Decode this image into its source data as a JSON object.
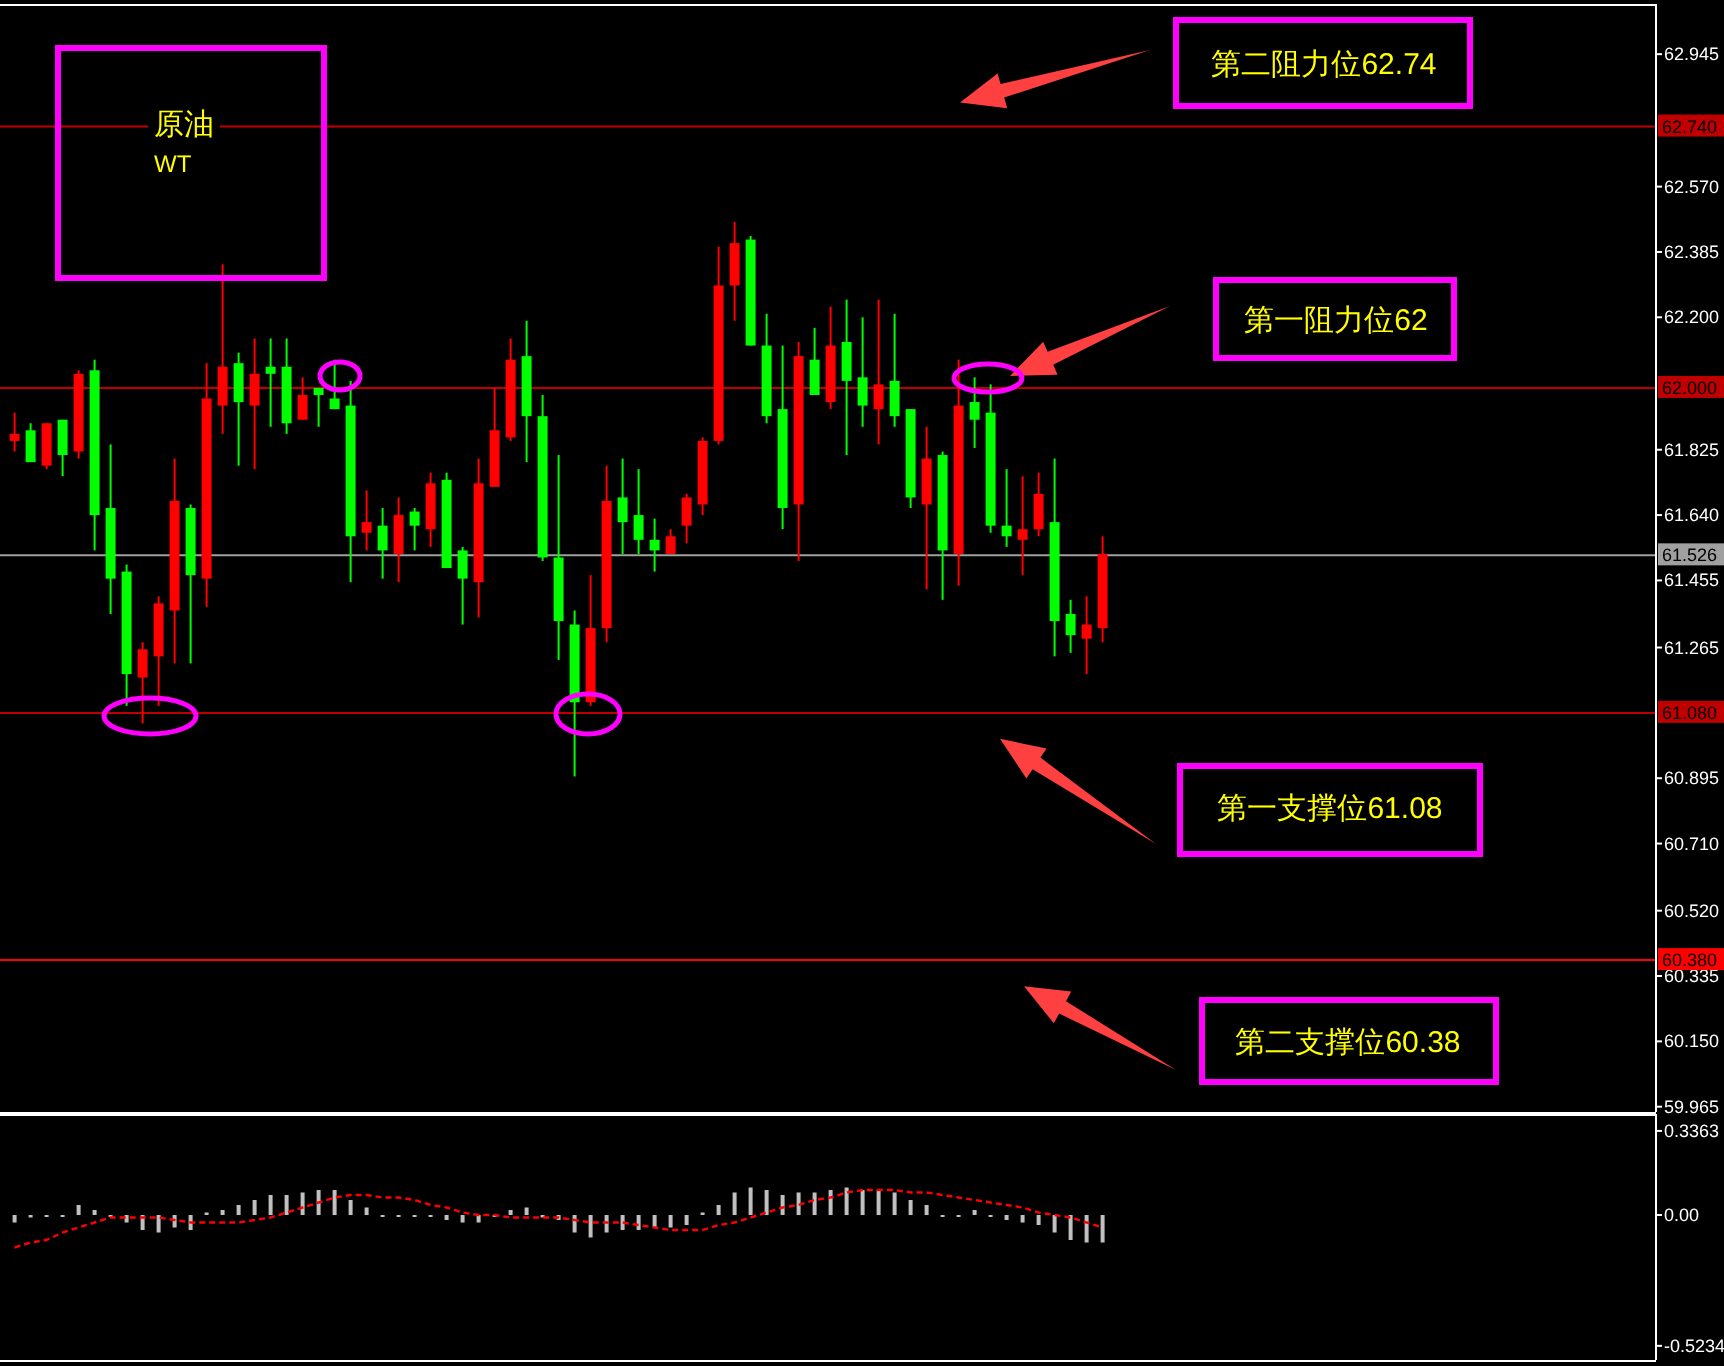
{
  "chart_data": [
    {
      "type": "candlestick",
      "title": "原油",
      "subtitle": "WT",
      "tick_labels": "y",
      "categories": [
        null,
        null,
        null,
        null,
        null,
        null,
        null,
        null,
        null,
        null,
        null,
        null,
        null,
        null,
        null,
        null,
        null,
        null,
        null,
        null,
        null,
        null,
        null,
        null,
        null,
        null,
        null,
        null,
        null,
        null,
        null,
        null,
        null,
        null,
        null,
        null,
        null,
        null,
        null,
        null,
        null,
        null,
        null,
        null,
        null,
        null,
        null,
        null,
        null,
        null,
        null,
        null,
        null,
        null,
        null,
        null,
        null,
        null,
        null,
        null,
        null,
        null,
        null,
        null,
        null,
        null,
        null,
        null,
        null,
        null,
        null,
        null,
        null,
        null,
        null,
        null,
        null,
        null,
        null,
        null,
        null,
        null,
        null,
        null,
        null,
        null,
        null,
        null,
        null,
        null,
        null,
        null,
        null,
        null,
        null,
        null,
        null,
        null,
        null,
        null,
        null,
        null,
        null
      ],
      "ohlc": [
        [
          61.85,
          61.93,
          61.82,
          61.87
        ],
        [
          61.88,
          61.9,
          61.79,
          61.79
        ],
        [
          61.78,
          61.9,
          61.77,
          61.9
        ],
        [
          61.91,
          61.91,
          61.75,
          61.81
        ],
        [
          61.82,
          62.05,
          61.8,
          62.04
        ],
        [
          62.05,
          62.08,
          61.54,
          61.64
        ],
        [
          61.66,
          61.84,
          61.36,
          61.46
        ],
        [
          61.48,
          61.5,
          61.1,
          61.19
        ],
        [
          61.18,
          61.28,
          61.05,
          61.26
        ],
        [
          61.24,
          61.41,
          61.1,
          61.39
        ],
        [
          61.37,
          61.8,
          61.22,
          61.68
        ],
        [
          61.66,
          61.67,
          61.22,
          61.47
        ],
        [
          61.46,
          62.07,
          61.38,
          61.97
        ],
        [
          61.95,
          62.35,
          61.87,
          62.06
        ],
        [
          62.07,
          62.1,
          61.78,
          61.96
        ],
        [
          61.95,
          62.14,
          61.77,
          62.04
        ],
        [
          62.06,
          62.14,
          61.89,
          62.04
        ],
        [
          62.06,
          62.14,
          61.87,
          61.9
        ],
        [
          61.91,
          62.03,
          61.91,
          61.98
        ],
        [
          62.0,
          62.0,
          61.89,
          61.98
        ],
        [
          61.97,
          62.08,
          61.94,
          61.94
        ],
        [
          61.95,
          62.02,
          61.45,
          61.58
        ],
        [
          61.59,
          61.71,
          61.54,
          61.62
        ],
        [
          61.61,
          61.66,
          61.46,
          61.54
        ],
        [
          61.53,
          61.69,
          61.45,
          61.64
        ],
        [
          61.65,
          61.66,
          61.54,
          61.61
        ],
        [
          61.6,
          61.76,
          61.55,
          61.73
        ],
        [
          61.74,
          61.76,
          61.49,
          61.49
        ],
        [
          61.54,
          61.55,
          61.33,
          61.46
        ],
        [
          61.45,
          61.8,
          61.35,
          61.73
        ],
        [
          61.72,
          62.0,
          61.72,
          61.88
        ],
        [
          61.86,
          62.14,
          61.85,
          62.08
        ],
        [
          62.09,
          62.19,
          61.79,
          61.92
        ],
        [
          61.92,
          61.98,
          61.51,
          61.52
        ],
        [
          61.52,
          61.81,
          61.23,
          61.34
        ],
        [
          61.33,
          61.37,
          60.9,
          61.11
        ],
        [
          61.11,
          61.47,
          61.1,
          61.32
        ],
        [
          61.32,
          61.78,
          61.28,
          61.68
        ],
        [
          61.69,
          61.8,
          61.53,
          61.62
        ],
        [
          61.64,
          61.77,
          61.53,
          61.57
        ],
        [
          61.57,
          61.63,
          61.48,
          61.54
        ],
        [
          61.53,
          61.6,
          61.53,
          61.58
        ],
        [
          61.61,
          61.7,
          61.56,
          61.69
        ],
        [
          61.67,
          61.86,
          61.64,
          61.85
        ],
        [
          61.85,
          62.4,
          61.84,
          62.29
        ],
        [
          62.29,
          62.47,
          62.19,
          62.41
        ],
        [
          62.42,
          62.43,
          62.12,
          62.12
        ],
        [
          62.12,
          62.21,
          61.9,
          61.92
        ],
        [
          61.94,
          62.12,
          61.6,
          61.66
        ],
        [
          61.67,
          62.13,
          61.51,
          62.09
        ],
        [
          62.08,
          62.17,
          61.98,
          61.98
        ],
        [
          61.96,
          62.23,
          61.94,
          62.12
        ],
        [
          62.13,
          62.25,
          61.81,
          62.02
        ],
        [
          62.03,
          62.2,
          61.89,
          61.95
        ],
        [
          61.94,
          62.25,
          61.84,
          62.01
        ],
        [
          62.02,
          62.21,
          61.89,
          61.92
        ],
        [
          61.94,
          61.94,
          61.66,
          61.69
        ],
        [
          61.67,
          61.89,
          61.43,
          61.8
        ],
        [
          61.81,
          61.82,
          61.4,
          61.54
        ],
        [
          61.53,
          62.08,
          61.44,
          61.95
        ],
        [
          61.96,
          62.03,
          61.83,
          61.91
        ],
        [
          61.93,
          62.01,
          61.59,
          61.61
        ],
        [
          61.61,
          61.77,
          61.55,
          61.58
        ],
        [
          61.57,
          61.75,
          61.47,
          61.6
        ],
        [
          61.6,
          61.76,
          61.58,
          61.7
        ],
        [
          61.62,
          61.8,
          61.24,
          61.34
        ],
        [
          61.36,
          61.4,
          61.25,
          61.3
        ],
        [
          61.29,
          61.41,
          61.19,
          61.33
        ],
        [
          61.32,
          61.58,
          61.28,
          61.53
        ],
        null,
        null,
        null,
        null,
        null,
        null,
        null,
        null,
        null,
        null,
        null,
        null,
        null,
        null,
        null,
        null,
        null,
        null,
        null,
        null,
        null,
        null,
        null,
        null,
        null,
        null,
        null,
        null,
        null,
        null,
        null,
        null,
        null,
        null
      ],
      "colors": [
        "#ff0000",
        "#00ff00",
        "#ff0000",
        "#00ff00",
        "#ff0000",
        "#00ff00",
        "#00ff00",
        "#00ff00",
        "#ff0000",
        "#ff0000",
        "#ff0000",
        "#00ff00",
        "#ff0000",
        "#ff0000",
        "#00ff00",
        "#ff0000",
        "#00ff00",
        "#00ff00",
        "#ff0000",
        "#00ff00",
        "#00ff00",
        "#00ff00",
        "#ff0000",
        "#00ff00",
        "#ff0000",
        "#00ff00",
        "#ff0000",
        "#00ff00",
        "#00ff00",
        "#ff0000",
        "#ff0000",
        "#ff0000",
        "#00ff00",
        "#00ff00",
        "#00ff00",
        "#00ff00",
        "#ff0000",
        "#ff0000",
        "#00ff00",
        "#00ff00",
        "#00ff00",
        "#ff0000",
        "#ff0000",
        "#ff0000",
        "#ff0000",
        "#ff0000",
        "#00ff00",
        "#00ff00",
        "#00ff00",
        "#ff0000",
        "#00ff00",
        "#ff0000",
        "#00ff00",
        "#00ff00",
        "#ff0000",
        "#00ff00",
        "#00ff00",
        "#ff0000",
        "#00ff00",
        "#ff0000",
        "#00ff00",
        "#00ff00",
        "#00ff00",
        "#ff0000",
        "#ff0000",
        "#00ff00",
        "#00ff00",
        "#ff0000",
        "#ff0000",
        null,
        null,
        null,
        null,
        null,
        null,
        null,
        null,
        null,
        null,
        null,
        null,
        null,
        null,
        null,
        null,
        null,
        null,
        null,
        null,
        null,
        null,
        null,
        null,
        null,
        null,
        null,
        null,
        null,
        null,
        null,
        null,
        null,
        null
      ],
      "ylim": [
        59.95,
        63.07
      ],
      "yticks": [
        62.945,
        {
          "value": 62.57,
          "label": "62.570"
        },
        62.385,
        {
          "value": 62.2,
          "label": "62.200"
        },
        61.825,
        {
          "value": 61.64,
          "label": "61.640"
        },
        61.455,
        61.265,
        60.895,
        {
          "value": 60.71,
          "label": "60.710"
        },
        {
          "value": 60.52,
          "label": "60.520"
        },
        60.335,
        {
          "value": 60.15,
          "label": "60.150"
        },
        59.965
      ],
      "ref_lines": [
        {
          "axis": "y",
          "value": 62.74,
          "label": "62.740",
          "color": "#c00000"
        },
        {
          "axis": "y",
          "value": 62.0,
          "label": "62.000",
          "color": "#c00000"
        },
        {
          "axis": "y",
          "value": 61.526,
          "label": "61.526",
          "color": "#a0a0a0"
        },
        {
          "axis": "y",
          "value": 61.08,
          "label": "61.080",
          "color": "#c00000"
        },
        {
          "axis": "y",
          "value": 60.38,
          "label": "60.380",
          "color": "#ff0000"
        }
      ],
      "annotations": [
        {
          "text": "第二阻力位62.74",
          "y": 62.74
        },
        {
          "text": "第一阻力位62",
          "y": 62.0
        },
        {
          "text": "第一支撑位61.08",
          "y": 61.08
        },
        {
          "text": "第二支撑位60.38",
          "y": 60.38
        }
      ]
    },
    {
      "type": "bar",
      "tick_labels": "y",
      "categories": [
        null,
        null,
        null,
        null,
        null,
        null,
        null,
        null,
        null,
        null,
        null,
        null,
        null,
        null,
        null,
        null,
        null,
        null,
        null,
        null,
        null,
        null,
        null,
        null,
        null,
        null,
        null,
        null,
        null,
        null,
        null,
        null,
        null,
        null,
        null,
        null,
        null,
        null,
        null,
        null,
        null,
        null,
        null,
        null,
        null,
        null,
        null,
        null,
        null,
        null,
        null,
        null,
        null,
        null,
        null,
        null,
        null,
        null,
        null,
        null,
        null,
        null,
        null,
        null,
        null,
        null,
        null,
        null,
        null,
        null,
        null,
        null,
        null,
        null,
        null,
        null,
        null,
        null,
        null,
        null,
        null,
        null,
        null,
        null,
        null,
        null,
        null,
        null,
        null,
        null,
        null,
        null,
        null,
        null,
        null,
        null,
        null,
        null,
        null,
        null,
        null,
        null,
        null
      ],
      "series": [
        {
          "type": "bar",
          "color": "#c0c0c0",
          "values": [
            -0.03,
            -0.01,
            0,
            0,
            0.04,
            0.02,
            0,
            -0.03,
            -0.06,
            -0.07,
            -0.05,
            -0.06,
            0.01,
            0.02,
            0.04,
            0.06,
            0.08,
            0.08,
            0.09,
            0.1,
            0.1,
            0.06,
            0.03,
            0,
            0,
            0,
            0,
            -0.02,
            -0.03,
            -0.03,
            0,
            0.02,
            0.03,
            -0.01,
            -0.02,
            -0.07,
            -0.09,
            -0.07,
            -0.06,
            -0.06,
            -0.05,
            -0.05,
            -0.04,
            0.01,
            0.04,
            0.09,
            0.11,
            0.1,
            0.08,
            0.09,
            0.09,
            0.1,
            0.11,
            0.1,
            0.1,
            0.09,
            0.06,
            0.04,
            0,
            0,
            0.02,
            0,
            -0.02,
            -0.03,
            -0.04,
            -0.07,
            -0.1,
            -0.11,
            -0.11,
            null,
            null,
            null,
            null,
            null,
            null,
            null,
            null,
            null,
            null,
            null,
            null,
            null,
            null,
            null,
            null,
            null,
            null,
            null,
            null,
            null,
            null,
            null,
            null,
            null,
            null,
            null,
            null,
            null,
            null,
            null,
            null,
            null,
            null
          ]
        },
        {
          "type": "line",
          "color": "#ff0000",
          "line_style": "dashed",
          "values": [
            -0.13,
            -0.11,
            -0.1,
            -0.07,
            -0.05,
            -0.03,
            -0.01,
            -0.01,
            -0.01,
            -0.01,
            -0.02,
            -0.03,
            -0.03,
            -0.03,
            -0.03,
            -0.02,
            -0.01,
            0.01,
            0.03,
            0.05,
            0.07,
            0.08,
            0.08,
            0.07,
            0.07,
            0.06,
            0.04,
            0.03,
            0.01,
            0,
            0,
            -0.01,
            -0.01,
            -0.01,
            -0.01,
            -0.02,
            -0.03,
            -0.03,
            -0.03,
            -0.04,
            -0.05,
            -0.06,
            -0.06,
            -0.06,
            -0.04,
            -0.03,
            -0.01,
            0.01,
            0.03,
            0.04,
            0.06,
            0.07,
            0.09,
            0.1,
            0.1,
            0.1,
            0.09,
            0.09,
            0.08,
            0.07,
            0.06,
            0.05,
            0.04,
            0.03,
            0.01,
            0,
            -0.01,
            -0.03,
            -0.05,
            null,
            null,
            null,
            null,
            null,
            null,
            null,
            null,
            null,
            null,
            null,
            null,
            null,
            null,
            null,
            null,
            null,
            null,
            null,
            null,
            null,
            null,
            null,
            null,
            null,
            null,
            null,
            null,
            null,
            null,
            null,
            null,
            null,
            null
          ]
        }
      ],
      "ylim": [
        -0.58,
        0.38
      ],
      "yticks": [
        0.3363,
        {
          "value": 0,
          "label": "0.00"
        },
        {
          "value": -0.5234,
          "label": "-0.5234"
        }
      ]
    }
  ]
}
